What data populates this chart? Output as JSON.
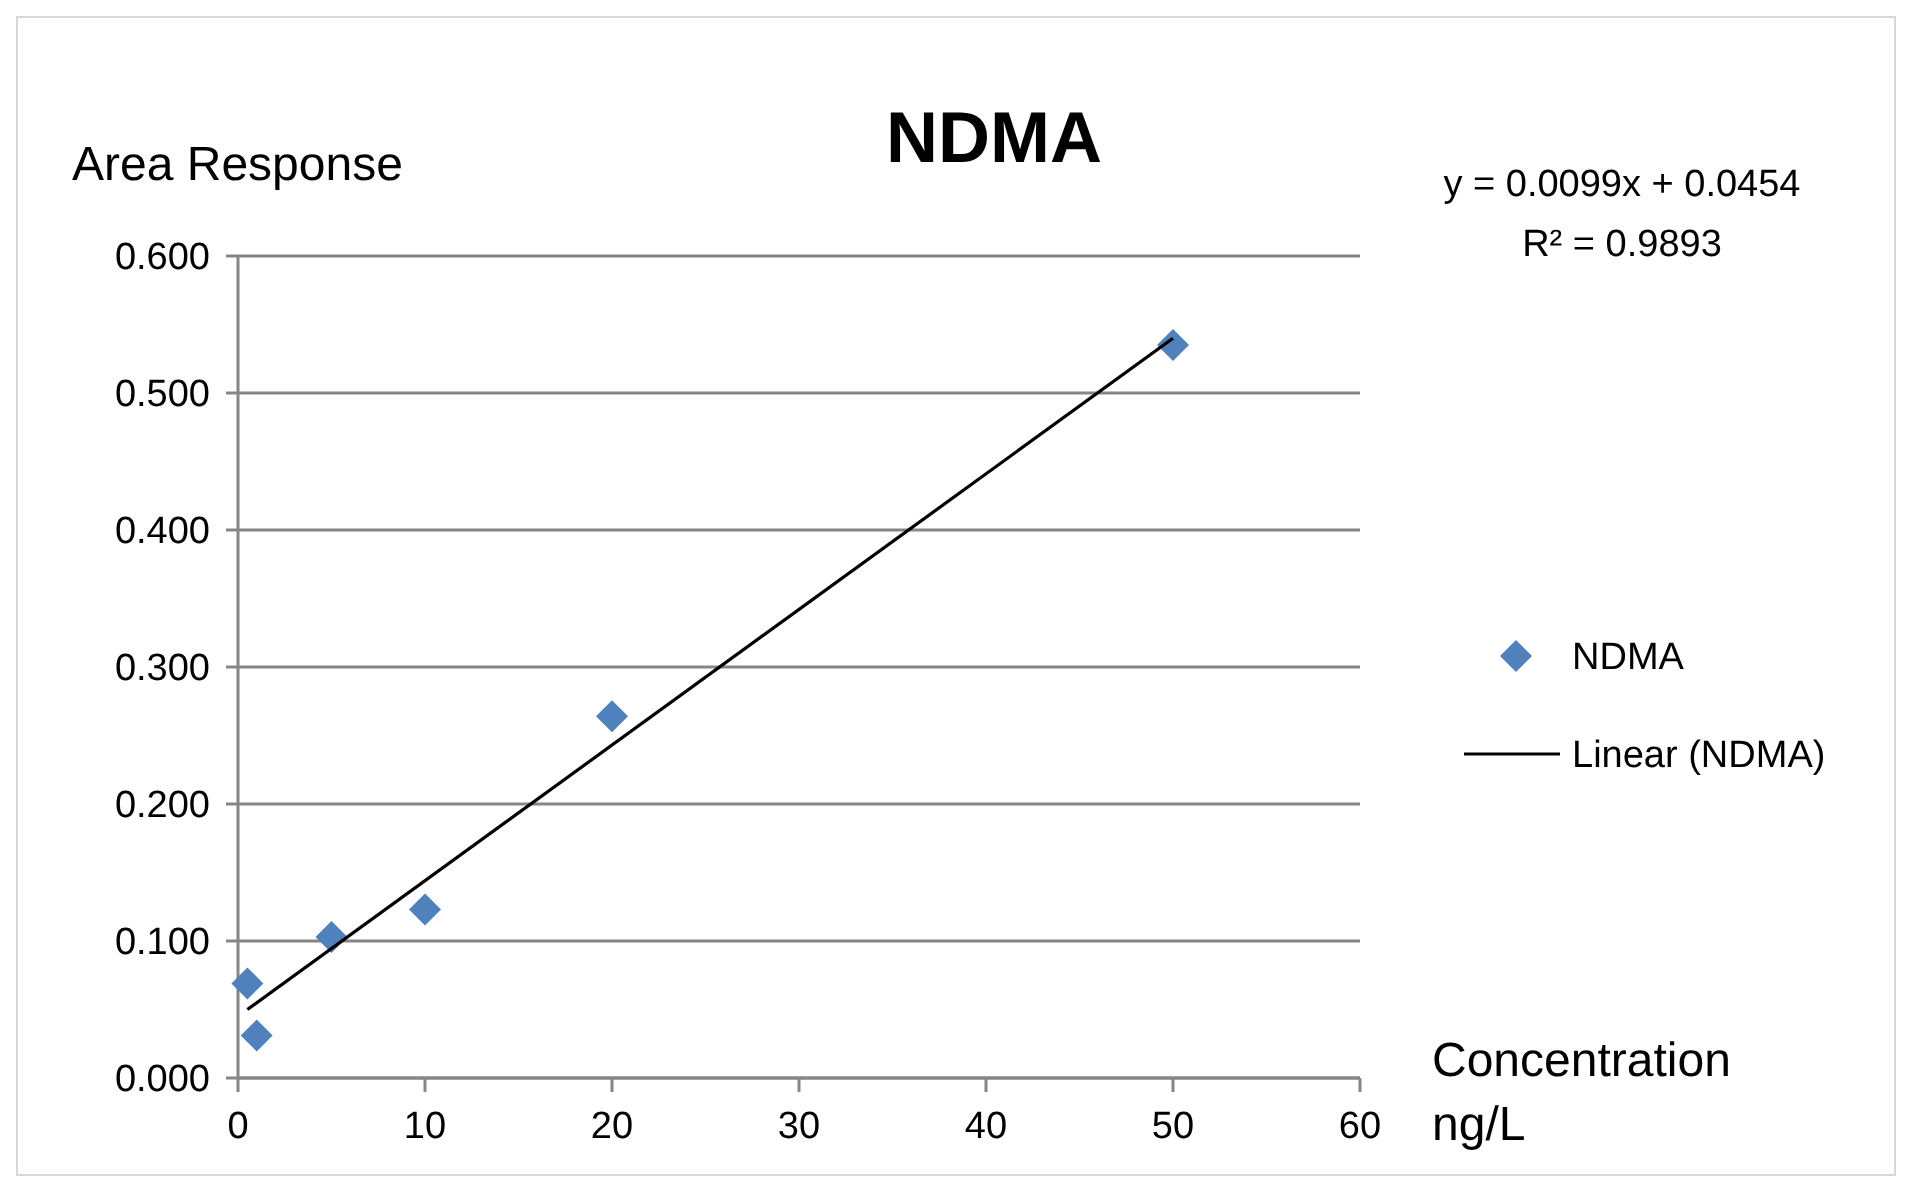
{
  "chart_data": {
    "type": "scatter",
    "title": "NDMA",
    "xlabel": "Concentration ng/L",
    "ylabel": "Area Response",
    "annotations": [
      "y = 0.0099x + 0.0454",
      "R² = 0.9893"
    ],
    "x": [
      0.5,
      1,
      5,
      10,
      20,
      50
    ],
    "series": [
      {
        "name": "NDMA",
        "color": "#4f81bd",
        "values": [
          0.069,
          0.031,
          0.103,
          0.123,
          0.264,
          0.535
        ],
        "marker": "diamond"
      },
      {
        "name": "Linear (NDMA)",
        "type": "line",
        "color": "#000000",
        "x": [
          0.5,
          50
        ],
        "values": [
          0.05,
          0.54
        ],
        "line_style": "solid"
      }
    ],
    "xlim": [
      0,
      60
    ],
    "xticks": [
      0,
      10,
      20,
      30,
      40,
      50,
      60
    ],
    "ylim": [
      0,
      0.6
    ],
    "yticks": [
      {
        "value": 0,
        "label": "0.000"
      },
      {
        "value": 0.1,
        "label": "0.100"
      },
      {
        "value": 0.2,
        "label": "0.200"
      },
      {
        "value": 0.3,
        "label": "0.300"
      },
      {
        "value": 0.4,
        "label": "0.400"
      },
      {
        "value": 0.5,
        "label": "0.500"
      },
      {
        "value": 0.6,
        "label": "0.600"
      }
    ],
    "grid": "y",
    "legend": "right"
  }
}
